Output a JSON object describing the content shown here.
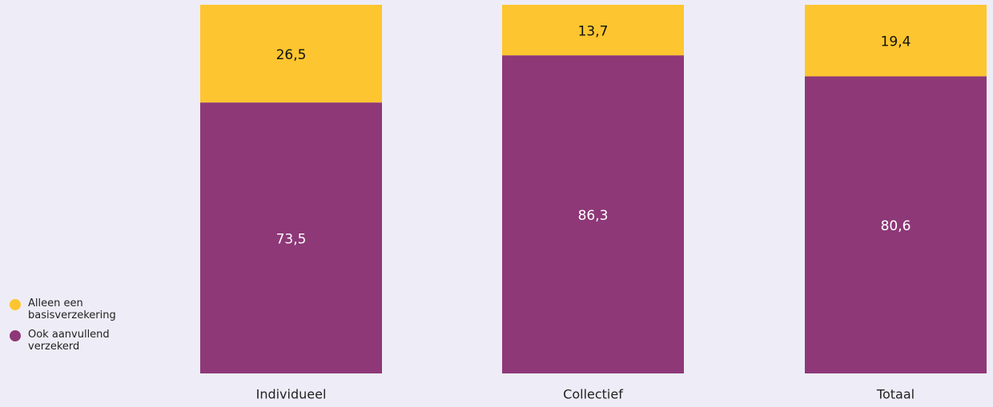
{
  "chart_data": {
    "type": "stacked-bar",
    "categories": [
      "Individueel",
      "Collectief",
      "Totaal"
    ],
    "series": [
      {
        "name": "Alleen een basisverzekering",
        "color": "#fdc52f",
        "values": [
          26.5,
          13.7,
          19.4
        ],
        "value_labels": [
          "26,5",
          "13,7",
          "19,4"
        ]
      },
      {
        "name": "Ook aanvullend verzekerd",
        "color": "#8e3878",
        "values": [
          73.5,
          86.3,
          80.6
        ],
        "value_labels": [
          "73,5",
          "86,3",
          "80,6"
        ]
      }
    ],
    "ylim": [
      0,
      100
    ]
  }
}
